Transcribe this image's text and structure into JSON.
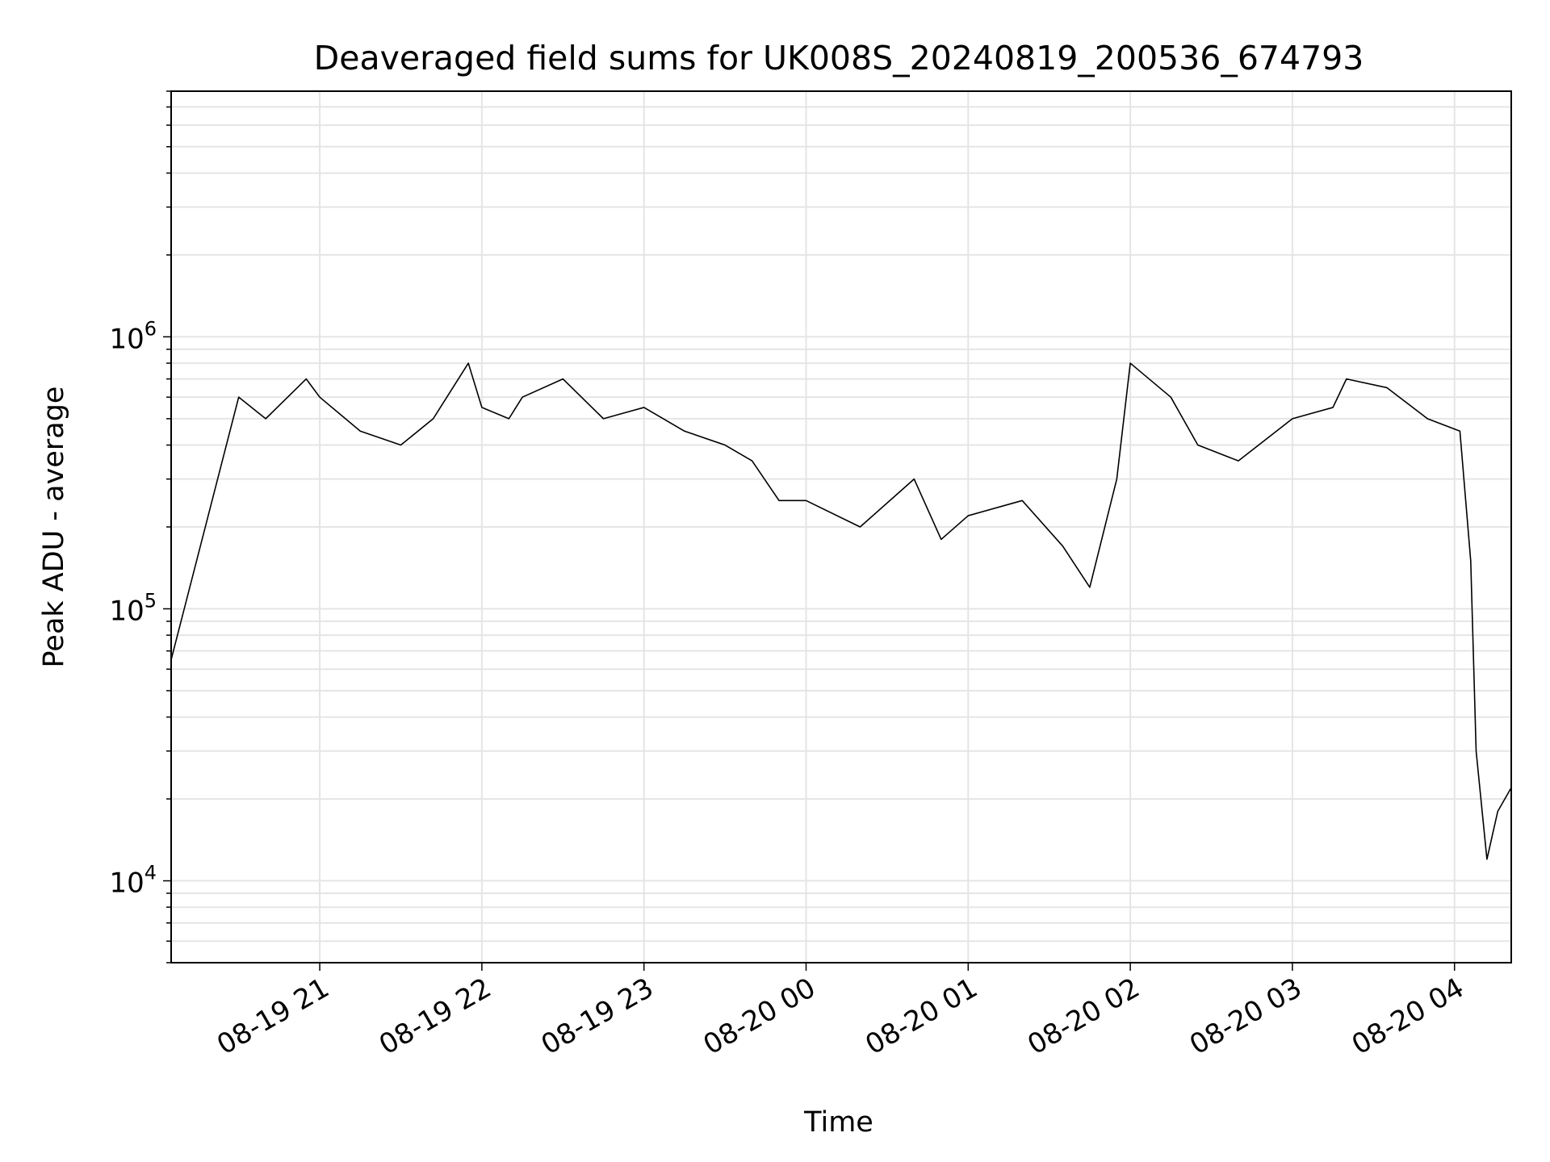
{
  "chart_data": {
    "type": "line",
    "title": "Deaveraged field sums for UK008S_20240819_200536_674793",
    "xlabel": "Time",
    "ylabel": "Peak ADU - average",
    "yscale": "log",
    "ylim": [
      5000,
      8000000
    ],
    "xlim": [
      "2024-08-19 20:05",
      "2024-08-20 04:21"
    ],
    "grid": true,
    "line_color": "#000000",
    "grid_color": "#e5e5e5",
    "x_ticks": [
      {
        "value": "2024-08-19 21:00",
        "label": "08-19 21"
      },
      {
        "value": "2024-08-19 22:00",
        "label": "08-19 22"
      },
      {
        "value": "2024-08-19 23:00",
        "label": "08-19 23"
      },
      {
        "value": "2024-08-20 00:00",
        "label": "08-20 00"
      },
      {
        "value": "2024-08-20 01:00",
        "label": "08-20 01"
      },
      {
        "value": "2024-08-20 02:00",
        "label": "08-20 02"
      },
      {
        "value": "2024-08-20 03:00",
        "label": "08-20 03"
      },
      {
        "value": "2024-08-20 04:00",
        "label": "08-20 04"
      }
    ],
    "y_ticks": [
      {
        "value": 10000,
        "label": "10",
        "exp": "4"
      },
      {
        "value": 100000,
        "label": "10",
        "exp": "5"
      },
      {
        "value": 1000000,
        "label": "10",
        "exp": "6"
      }
    ],
    "series": [
      {
        "color": "#000000",
        "x": [
          "2024-08-19 20:05",
          "2024-08-19 20:30",
          "2024-08-19 20:40",
          "2024-08-19 20:55",
          "2024-08-19 21:00",
          "2024-08-19 21:15",
          "2024-08-19 21:30",
          "2024-08-19 21:42",
          "2024-08-19 21:55",
          "2024-08-19 22:00",
          "2024-08-19 22:10",
          "2024-08-19 22:15",
          "2024-08-19 22:30",
          "2024-08-19 22:45",
          "2024-08-19 23:00",
          "2024-08-19 23:15",
          "2024-08-19 23:30",
          "2024-08-19 23:40",
          "2024-08-19 23:50",
          "2024-08-20 00:00",
          "2024-08-20 00:20",
          "2024-08-20 00:40",
          "2024-08-20 00:50",
          "2024-08-20 01:00",
          "2024-08-20 01:20",
          "2024-08-20 01:35",
          "2024-08-20 01:45",
          "2024-08-20 01:55",
          "2024-08-20 02:00",
          "2024-08-20 02:15",
          "2024-08-20 02:25",
          "2024-08-20 02:40",
          "2024-08-20 03:00",
          "2024-08-20 03:15",
          "2024-08-20 03:20",
          "2024-08-20 03:35",
          "2024-08-20 03:50",
          "2024-08-20 04:02",
          "2024-08-20 04:06",
          "2024-08-20 04:08",
          "2024-08-20 04:12",
          "2024-08-20 04:16",
          "2024-08-20 04:21"
        ],
        "y": [
          65000,
          600000,
          500000,
          700000,
          600000,
          450000,
          400000,
          500000,
          800000,
          550000,
          500000,
          600000,
          700000,
          500000,
          550000,
          450000,
          400000,
          350000,
          250000,
          250000,
          200000,
          300000,
          180000,
          220000,
          250000,
          170000,
          120000,
          300000,
          800000,
          600000,
          400000,
          350000,
          500000,
          550000,
          700000,
          650000,
          500000,
          450000,
          150000,
          30000,
          12000,
          18000,
          22000
        ]
      }
    ]
  }
}
